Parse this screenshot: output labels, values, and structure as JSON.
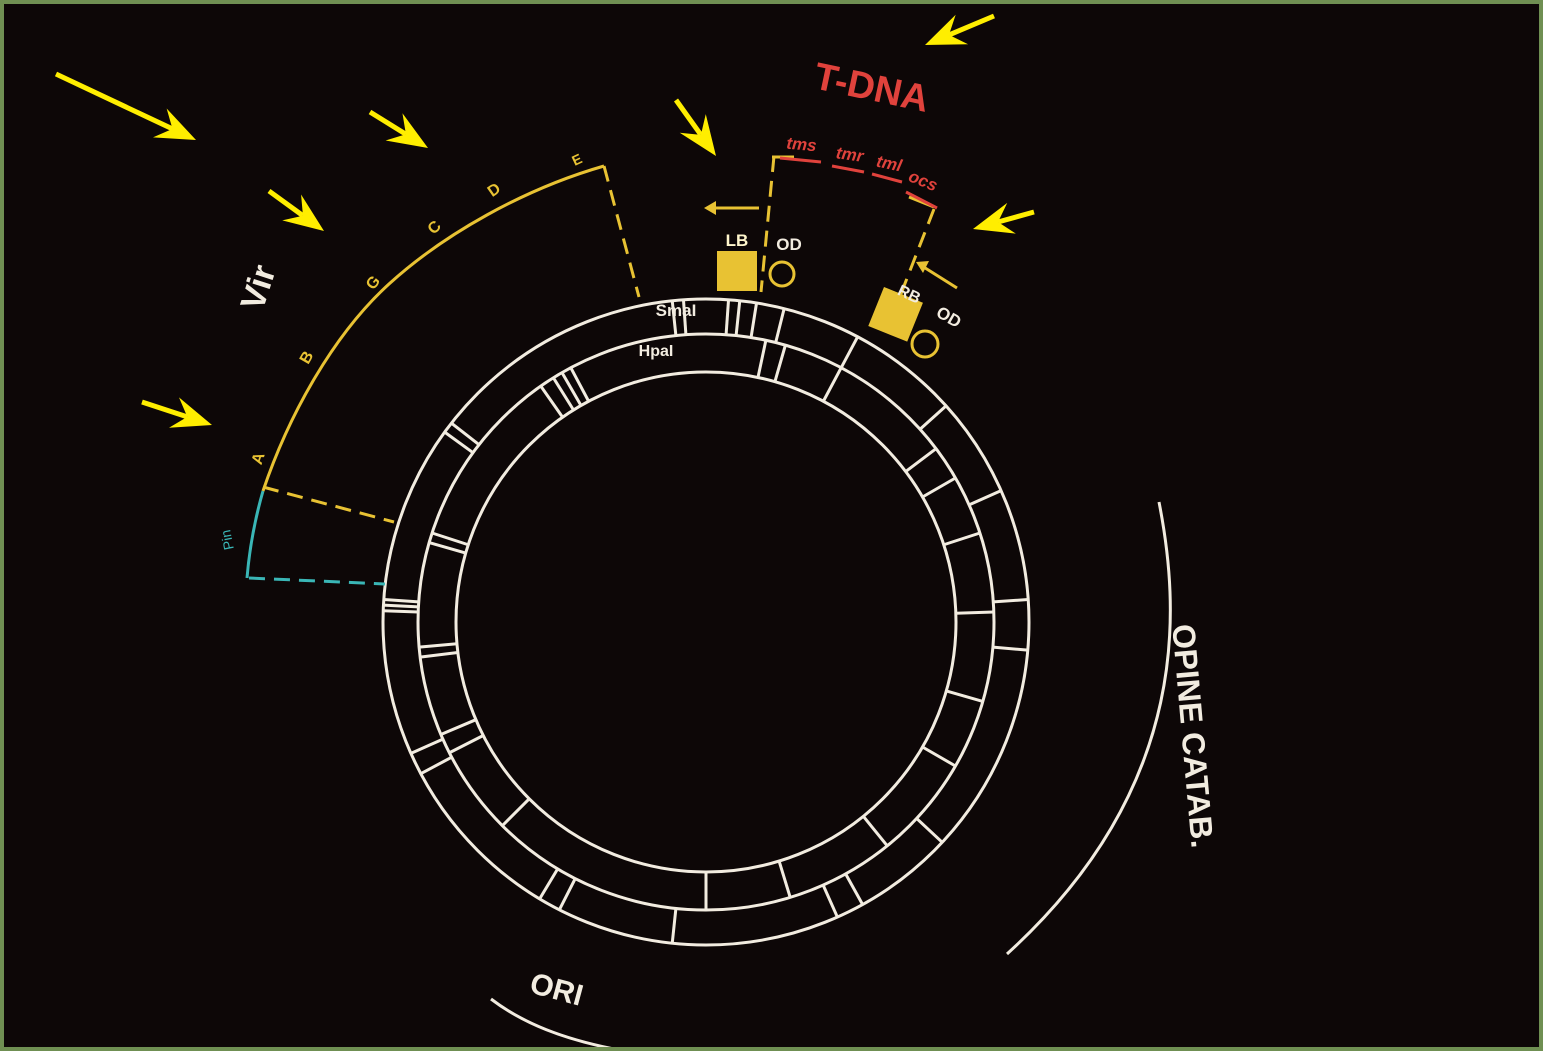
{
  "colors": {
    "background": "#0d0707",
    "frame": "#6f8f52",
    "map_lines": "#f2ece0",
    "vir": "#e8c233",
    "tdna": "#e0423c",
    "pin": "#3ab6b6",
    "arrow": "#ffee00"
  },
  "vir": {
    "title": "Vir",
    "genes": [
      "A",
      "B",
      "G",
      "C",
      "D",
      "E"
    ],
    "pin_label": "Pin"
  },
  "tdna": {
    "title": "T-DNA",
    "genes": [
      "tms",
      "tmr",
      "tml",
      "ocs"
    ],
    "left_border": "LB",
    "right_border": "RB",
    "od_left": "OD",
    "od_right": "OD"
  },
  "restriction": {
    "outer_enzyme": "SmaI",
    "inner_enzyme": "HpaI"
  },
  "regions": {
    "opine_catab": "OPINE CATAB.",
    "ori": "ORI"
  },
  "pointer_arrows": [
    "arrow-vir-region",
    "arrow-vir-a",
    "arrow-vir-g",
    "arrow-vir-e",
    "arrow-left-border",
    "arrow-tdna",
    "arrow-right-border"
  ]
}
